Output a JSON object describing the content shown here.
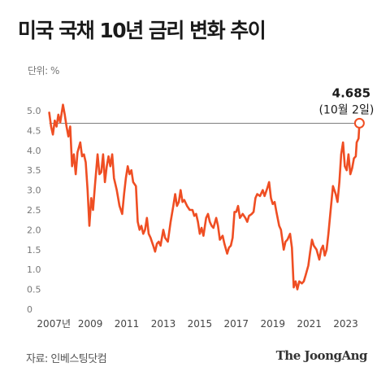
{
  "title": "미국 국채 10년 금리 변화 추이",
  "unit_label": "단위: %",
  "source": "자료: 인베스팅닷컴",
  "brand": "The JoongAng",
  "colors": {
    "line": "#ef4e23",
    "background": "#ffffff",
    "text": "#1a1a1a"
  },
  "chart_data": {
    "type": "line",
    "title": "미국 국채 10년 금리 변화 추이",
    "ylabel": "단위: %",
    "ylim": [
      0,
      5.0
    ],
    "yticks": [
      "0",
      "0.5",
      "1.0",
      "1.5",
      "2.0",
      "2.5",
      "3.0",
      "3.5",
      "4.0",
      "4.5",
      "5.0"
    ],
    "xlim": [
      2006.5,
      2024.0
    ],
    "xticks": [
      {
        "x": 2007,
        "label": "2007년"
      },
      {
        "x": 2009,
        "label": "2009"
      },
      {
        "x": 2011,
        "label": "2011"
      },
      {
        "x": 2013,
        "label": "2013"
      },
      {
        "x": 2015,
        "label": "2015"
      },
      {
        "x": 2017,
        "label": "2017"
      },
      {
        "x": 2019,
        "label": "2019"
      },
      {
        "x": 2021,
        "label": "2021"
      },
      {
        "x": 2023,
        "label": "2023"
      }
    ],
    "grid": false,
    "annotation": {
      "value": "4.685",
      "date": "(10월 2일)",
      "x": 2023.75,
      "y": 4.685
    },
    "series": [
      {
        "name": "",
        "points": [
          [
            2006.75,
            4.95
          ],
          [
            2006.85,
            4.6
          ],
          [
            2006.95,
            4.4
          ],
          [
            2007.05,
            4.75
          ],
          [
            2007.15,
            4.6
          ],
          [
            2007.25,
            4.9
          ],
          [
            2007.35,
            4.7
          ],
          [
            2007.5,
            5.15
          ],
          [
            2007.6,
            4.9
          ],
          [
            2007.7,
            4.6
          ],
          [
            2007.8,
            4.35
          ],
          [
            2007.9,
            4.6
          ],
          [
            2008.0,
            3.6
          ],
          [
            2008.1,
            3.9
          ],
          [
            2008.2,
            3.4
          ],
          [
            2008.3,
            3.95
          ],
          [
            2008.45,
            4.2
          ],
          [
            2008.55,
            3.85
          ],
          [
            2008.65,
            3.9
          ],
          [
            2008.75,
            3.7
          ],
          [
            2008.85,
            3.0
          ],
          [
            2008.95,
            2.1
          ],
          [
            2009.05,
            2.8
          ],
          [
            2009.15,
            2.5
          ],
          [
            2009.25,
            3.1
          ],
          [
            2009.4,
            3.9
          ],
          [
            2009.5,
            3.4
          ],
          [
            2009.6,
            3.45
          ],
          [
            2009.7,
            3.9
          ],
          [
            2009.8,
            3.2
          ],
          [
            2009.9,
            3.6
          ],
          [
            2010.0,
            3.85
          ],
          [
            2010.1,
            3.6
          ],
          [
            2010.2,
            3.9
          ],
          [
            2010.3,
            3.3
          ],
          [
            2010.45,
            3.0
          ],
          [
            2010.6,
            2.6
          ],
          [
            2010.75,
            2.4
          ],
          [
            2010.85,
            2.9
          ],
          [
            2010.95,
            3.3
          ],
          [
            2011.05,
            3.6
          ],
          [
            2011.15,
            3.4
          ],
          [
            2011.25,
            3.5
          ],
          [
            2011.35,
            3.2
          ],
          [
            2011.5,
            3.1
          ],
          [
            2011.6,
            2.2
          ],
          [
            2011.7,
            2.0
          ],
          [
            2011.8,
            2.1
          ],
          [
            2011.9,
            1.9
          ],
          [
            2012.0,
            2.0
          ],
          [
            2012.1,
            2.3
          ],
          [
            2012.2,
            1.9
          ],
          [
            2012.3,
            1.8
          ],
          [
            2012.45,
            1.6
          ],
          [
            2012.55,
            1.45
          ],
          [
            2012.65,
            1.65
          ],
          [
            2012.75,
            1.7
          ],
          [
            2012.85,
            1.6
          ],
          [
            2013.0,
            2.0
          ],
          [
            2013.1,
            1.8
          ],
          [
            2013.25,
            1.7
          ],
          [
            2013.4,
            2.2
          ],
          [
            2013.55,
            2.6
          ],
          [
            2013.65,
            2.9
          ],
          [
            2013.75,
            2.6
          ],
          [
            2013.85,
            2.7
          ],
          [
            2013.95,
            3.0
          ],
          [
            2014.05,
            2.7
          ],
          [
            2014.15,
            2.75
          ],
          [
            2014.3,
            2.6
          ],
          [
            2014.45,
            2.5
          ],
          [
            2014.6,
            2.5
          ],
          [
            2014.7,
            2.35
          ],
          [
            2014.8,
            2.4
          ],
          [
            2014.9,
            2.2
          ],
          [
            2015.0,
            1.9
          ],
          [
            2015.1,
            2.05
          ],
          [
            2015.2,
            1.85
          ],
          [
            2015.35,
            2.3
          ],
          [
            2015.45,
            2.4
          ],
          [
            2015.55,
            2.2
          ],
          [
            2015.65,
            2.1
          ],
          [
            2015.75,
            2.05
          ],
          [
            2015.9,
            2.3
          ],
          [
            2016.0,
            2.1
          ],
          [
            2016.1,
            1.75
          ],
          [
            2016.25,
            1.85
          ],
          [
            2016.35,
            1.65
          ],
          [
            2016.5,
            1.4
          ],
          [
            2016.6,
            1.55
          ],
          [
            2016.7,
            1.6
          ],
          [
            2016.8,
            1.8
          ],
          [
            2016.9,
            2.45
          ],
          [
            2017.0,
            2.45
          ],
          [
            2017.1,
            2.6
          ],
          [
            2017.2,
            2.3
          ],
          [
            2017.35,
            2.4
          ],
          [
            2017.5,
            2.3
          ],
          [
            2017.6,
            2.2
          ],
          [
            2017.7,
            2.35
          ],
          [
            2017.85,
            2.4
          ],
          [
            2017.95,
            2.45
          ],
          [
            2018.05,
            2.8
          ],
          [
            2018.15,
            2.9
          ],
          [
            2018.3,
            2.85
          ],
          [
            2018.45,
            3.0
          ],
          [
            2018.55,
            2.85
          ],
          [
            2018.7,
            3.05
          ],
          [
            2018.8,
            3.2
          ],
          [
            2018.9,
            2.8
          ],
          [
            2019.0,
            2.65
          ],
          [
            2019.1,
            2.7
          ],
          [
            2019.2,
            2.45
          ],
          [
            2019.35,
            2.1
          ],
          [
            2019.45,
            2.0
          ],
          [
            2019.6,
            1.5
          ],
          [
            2019.7,
            1.7
          ],
          [
            2019.8,
            1.75
          ],
          [
            2019.95,
            1.9
          ],
          [
            2020.05,
            1.55
          ],
          [
            2020.15,
            0.55
          ],
          [
            2020.25,
            0.7
          ],
          [
            2020.35,
            0.5
          ],
          [
            2020.45,
            0.7
          ],
          [
            2020.6,
            0.65
          ],
          [
            2020.7,
            0.7
          ],
          [
            2020.8,
            0.85
          ],
          [
            2020.95,
            1.1
          ],
          [
            2021.05,
            1.45
          ],
          [
            2021.15,
            1.75
          ],
          [
            2021.25,
            1.6
          ],
          [
            2021.4,
            1.5
          ],
          [
            2021.55,
            1.25
          ],
          [
            2021.65,
            1.5
          ],
          [
            2021.75,
            1.6
          ],
          [
            2021.85,
            1.35
          ],
          [
            2021.95,
            1.5
          ],
          [
            2022.05,
            1.9
          ],
          [
            2022.15,
            2.4
          ],
          [
            2022.3,
            3.1
          ],
          [
            2022.45,
            2.9
          ],
          [
            2022.55,
            2.7
          ],
          [
            2022.65,
            3.2
          ],
          [
            2022.75,
            3.9
          ],
          [
            2022.85,
            4.2
          ],
          [
            2022.95,
            3.6
          ],
          [
            2023.05,
            3.5
          ],
          [
            2023.15,
            3.9
          ],
          [
            2023.25,
            3.4
          ],
          [
            2023.35,
            3.55
          ],
          [
            2023.45,
            3.8
          ],
          [
            2023.55,
            3.85
          ],
          [
            2023.6,
            4.2
          ],
          [
            2023.7,
            4.3
          ],
          [
            2023.75,
            4.685
          ]
        ]
      }
    ]
  }
}
